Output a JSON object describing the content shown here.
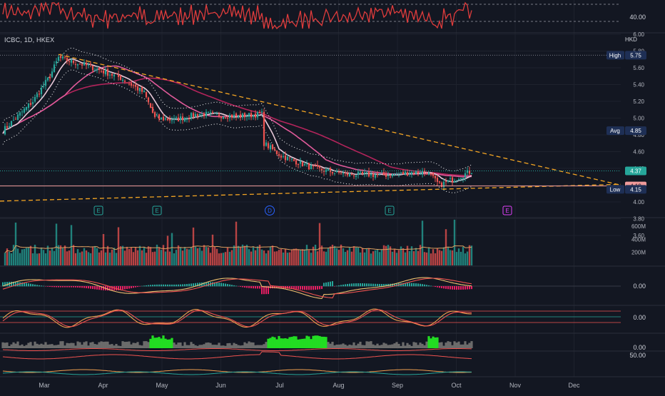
{
  "symbol_bar": {
    "text": "ICBC, 1D, HKEX",
    "currency": "HKD"
  },
  "colors": {
    "bg": "#131722",
    "grid": "#1e222d",
    "up": "#26a69a",
    "down": "#ef5350",
    "ma_fast": "#e8c8d8",
    "ma_mid": "#e05a9a",
    "ma_slow": "#b3245b",
    "trend": "#f5a623",
    "band": "#ffffff",
    "rsi": "#e03c3c",
    "current": "#26a69a",
    "last_low": "#ef9a9a",
    "green_fill": "#22dd22",
    "gray_fill": "#6b6b6b"
  },
  "chart_data": {
    "type": "candlestick",
    "x_axis": {
      "ticks": [
        "Mar",
        "Apr",
        "May",
        "Jun",
        "Jul",
        "Aug",
        "Sep",
        "Oct",
        "Nov",
        "Dec"
      ]
    },
    "top_indicator": {
      "type": "line",
      "tick_labels": [
        "40.00"
      ]
    },
    "price_axis": {
      "ticks": [
        "6.00",
        "5.80",
        "5.60",
        "5.40",
        "5.20",
        "5.00",
        "4.80",
        "4.60",
        "4.40",
        "4.20",
        "4.00",
        "3.80",
        "3.60"
      ],
      "range": [
        3.6,
        6.0
      ]
    },
    "price_labels": [
      {
        "name": "High",
        "value": "5.75"
      },
      {
        "name": "Avg",
        "value": "4.85"
      },
      {
        "name": "",
        "value": "4.37"
      },
      {
        "name": "",
        "value": "4.19"
      },
      {
        "name": "Low",
        "value": "4.15"
      }
    ],
    "event_markers": [
      "E",
      "E",
      "D",
      "E",
      "E"
    ],
    "volume": {
      "tick_labels": [
        "600M",
        "400M",
        "200M"
      ],
      "range": [
        0,
        700
      ]
    },
    "oscillators": [
      {
        "type": "macd",
        "tick_label": "0.00"
      },
      {
        "type": "stochastic",
        "tick_label": "0.00"
      },
      {
        "type": "histogram",
        "tick_label": "0.00"
      },
      {
        "type": "line",
        "tick_label": "50.00"
      }
    ],
    "anchors": [
      {
        "d": 0,
        "p": 4.85
      },
      {
        "d": 14,
        "p": 5.2
      },
      {
        "d": 22,
        "p": 5.5
      },
      {
        "d": 26,
        "p": 5.72
      },
      {
        "d": 40,
        "p": 5.62
      },
      {
        "d": 55,
        "p": 5.48
      },
      {
        "d": 66,
        "p": 5.3
      },
      {
        "d": 71,
        "p": 5.0
      },
      {
        "d": 80,
        "p": 4.98
      },
      {
        "d": 92,
        "p": 5.05
      },
      {
        "d": 110,
        "p": 5.02
      },
      {
        "d": 121,
        "p": 5.05
      },
      {
        "d": 122,
        "p": 4.7
      },
      {
        "d": 130,
        "p": 4.55
      },
      {
        "d": 145,
        "p": 4.4
      },
      {
        "d": 160,
        "p": 4.33
      },
      {
        "d": 180,
        "p": 4.32
      },
      {
        "d": 190,
        "p": 4.35
      },
      {
        "d": 198,
        "p": 4.36
      },
      {
        "d": 204,
        "p": 4.2
      },
      {
        "d": 213,
        "p": 4.3
      },
      {
        "d": 219,
        "p": 4.37
      }
    ]
  }
}
